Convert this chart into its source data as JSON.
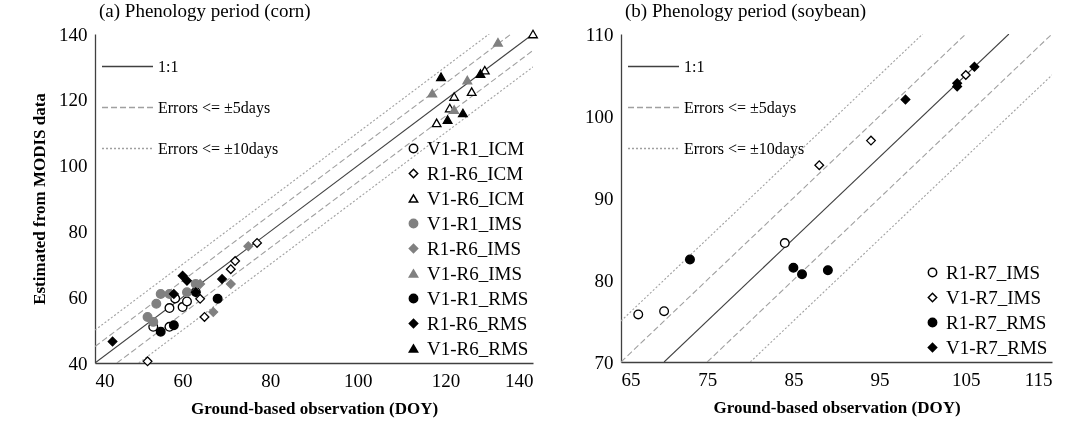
{
  "chart_data": [
    {
      "type": "scatter",
      "title": "(a) Phenology period (corn)",
      "xlabel": "Ground-based observation (DOY)",
      "ylabel": "Estimated from MODIS data",
      "xlim": [
        40,
        140
      ],
      "ylim": [
        40,
        140
      ],
      "xticks": [
        40,
        60,
        80,
        100,
        120,
        140
      ],
      "yticks": [
        40,
        60,
        80,
        100,
        120,
        140
      ],
      "legend": "bottom right",
      "series": [
        {
          "name": "1:1",
          "type": "line",
          "color": "#404040",
          "line_style": "solid",
          "x": [
            40,
            140
          ],
          "values": [
            40,
            140
          ]
        },
        {
          "name": "Errors <= ±5days",
          "type": "line",
          "color": "#a0a0a0",
          "line_style": "dashed",
          "x": [
            40,
            135
          ],
          "values": [
            45,
            140
          ]
        },
        {
          "type": "line",
          "color": "#a0a0a0",
          "line_style": "dashed",
          "x": [
            45,
            140
          ],
          "values": [
            40,
            135
          ]
        },
        {
          "name": "Errors <= ±10days",
          "type": "line",
          "color": "#a0a0a0",
          "line_style": "dotted",
          "x": [
            40,
            130
          ],
          "values": [
            50,
            140
          ]
        },
        {
          "type": "line",
          "color": "#a0a0a0",
          "line_style": "dotted",
          "x": [
            50,
            140
          ],
          "values": [
            40,
            130
          ]
        },
        {
          "name": "V1-R1_ICM",
          "color": "#ffffff",
          "marker": "circle",
          "x": [
            57,
            60,
            61,
            58.3,
            53.3,
            57,
            63
          ],
          "values": [
            56.7,
            57,
            58.7,
            59.6,
            51,
            51,
            61.6
          ]
        },
        {
          "name": "R1-R6_ICM",
          "color": "#ffffff",
          "marker": "diamond",
          "x": [
            52,
            65,
            64,
            71,
            72,
            77
          ],
          "values": [
            40.5,
            54,
            59.5,
            68.5,
            71,
            76.5
          ]
        },
        {
          "name": "V1-R6_ICM",
          "color": "#ffffff",
          "marker": "triangle",
          "x": [
            140,
            129,
            126,
            122,
            121,
            118
          ],
          "values": [
            140,
            129,
            122.5,
            121,
            117.5,
            113
          ]
        },
        {
          "name": "V1-R1_IMS",
          "color": "#808080",
          "marker": "circle",
          "x": [
            54,
            55,
            52,
            53.3,
            57,
            61,
            63
          ],
          "values": [
            58,
            61,
            54,
            52.5,
            61,
            61.5,
            64
          ]
        },
        {
          "name": "R1-R6_IMS",
          "color": "#808080",
          "marker": "diamond",
          "x": [
            75,
            71,
            67,
            64
          ],
          "values": [
            75.5,
            64,
            55.5,
            64
          ]
        },
        {
          "name": "V1-R6_IMS",
          "color": "#808080",
          "marker": "triangle",
          "x": [
            132,
            117,
            125,
            122
          ],
          "values": [
            137.5,
            122,
            126,
            117
          ]
        },
        {
          "name": "V1-R1_RMS",
          "color": "#000000",
          "marker": "circle",
          "x": [
            55,
            58,
            68
          ],
          "values": [
            49.5,
            51.5,
            59.5
          ]
        },
        {
          "name": "R1-R6_RMS",
          "color": "#000000",
          "marker": "diamond",
          "x": [
            44,
            58,
            60,
            61,
            63,
            69
          ],
          "values": [
            46.5,
            61,
            66.5,
            65,
            61.5,
            65.5
          ]
        },
        {
          "name": "V1-R6_RMS",
          "color": "#000000",
          "marker": "triangle",
          "x": [
            119,
            128,
            124,
            120.5
          ],
          "values": [
            127,
            128,
            116,
            114
          ]
        }
      ]
    },
    {
      "type": "scatter",
      "title": "(b) Phenology period (soybean)",
      "xlabel": "Ground-based observation (DOY)",
      "xlim": [
        65,
        115
      ],
      "ylim": [
        70,
        110
      ],
      "xticks": [
        65,
        75,
        85,
        95,
        105,
        115
      ],
      "yticks": [
        70,
        80,
        90,
        100,
        110
      ],
      "legend": "bottom right",
      "series": [
        {
          "name": "1:1",
          "type": "line",
          "color": "#404040",
          "line_style": "solid",
          "x": [
            70,
            110
          ],
          "values": [
            70,
            110
          ]
        },
        {
          "name": "Errors <= ±5days",
          "type": "line",
          "color": "#a0a0a0",
          "line_style": "dashed",
          "x": [
            65,
            105
          ],
          "values": [
            70,
            110
          ]
        },
        {
          "type": "line",
          "color": "#a0a0a0",
          "line_style": "dashed",
          "x": [
            75,
            115
          ],
          "values": [
            70,
            110
          ]
        },
        {
          "name": "Errors <= ±10days",
          "type": "line",
          "color": "#a0a0a0",
          "line_style": "dotted",
          "x": [
            65,
            100
          ],
          "values": [
            75,
            110
          ]
        },
        {
          "type": "line",
          "color": "#a0a0a0",
          "line_style": "dotted",
          "x": [
            80,
            115
          ],
          "values": [
            70,
            105
          ]
        },
        {
          "name": "R1-R7_IMS",
          "color": "#ffffff",
          "marker": "circle",
          "x": [
            67,
            70,
            84
          ],
          "values": [
            75.8,
            76.2,
            84.5
          ]
        },
        {
          "name": "V1-R7_IMS",
          "color": "#ffffff",
          "marker": "diamond",
          "x": [
            88,
            94,
            105
          ],
          "values": [
            94,
            97,
            105
          ]
        },
        {
          "name": "R1-R7_RMS",
          "color": "#000000",
          "marker": "circle",
          "x": [
            73,
            85,
            86,
            89
          ],
          "values": [
            82.5,
            81.5,
            80.7,
            81.2
          ]
        },
        {
          "name": "V1-R7_RMS",
          "color": "#000000",
          "marker": "diamond",
          "x": [
            98,
            104,
            104,
            106
          ],
          "values": [
            102,
            104,
            103.6,
            106
          ]
        }
      ]
    }
  ]
}
